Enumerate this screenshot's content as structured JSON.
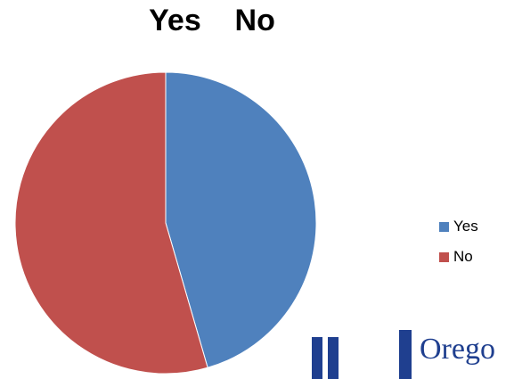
{
  "chart_data": {
    "type": "pie",
    "title": "Yes No",
    "categories": [
      "Yes",
      "No"
    ],
    "values": [
      45.5,
      54.5
    ],
    "colors": [
      "#4F81BD",
      "#C0504D"
    ],
    "legend_position": "right"
  },
  "logo": {
    "text": "Orego",
    "color": "#1f3f8f"
  }
}
